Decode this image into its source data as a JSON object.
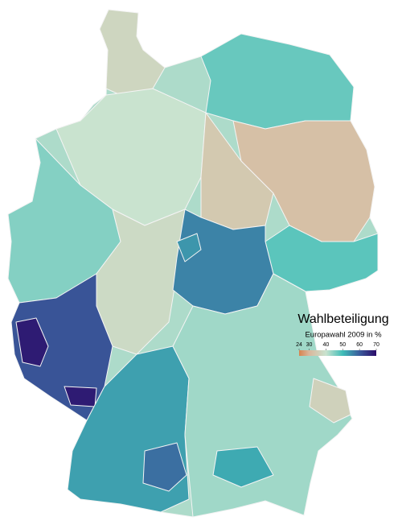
{
  "map": {
    "title": "Wahlbeteiligung",
    "subtitle": "Europawahl 2009 in %",
    "scale": {
      "min": 24,
      "max": 70,
      "stops": [
        {
          "value": 24,
          "color": "#d6844f"
        },
        {
          "value": 30,
          "color": "#d9b79c"
        },
        {
          "value": 40,
          "color": "#c9e3cf"
        },
        {
          "value": 50,
          "color": "#3fbdb7"
        },
        {
          "value": 60,
          "color": "#3a5c9c"
        },
        {
          "value": 70,
          "color": "#2b0b69"
        }
      ]
    },
    "legend_ticks": [
      24,
      30,
      40,
      50,
      60,
      70
    ],
    "regions": [
      {
        "value": 42
      },
      {
        "value": 37
      },
      {
        "value": 47
      },
      {
        "value": 40
      },
      {
        "value": 45
      },
      {
        "value": 32
      },
      {
        "value": 34
      },
      {
        "value": 48
      },
      {
        "value": 38
      },
      {
        "value": 56
      },
      {
        "value": 54
      },
      {
        "value": 61
      },
      {
        "value": 68
      },
      {
        "value": 53
      },
      {
        "value": 58
      },
      {
        "value": 43
      },
      {
        "value": 36
      },
      {
        "value": 52
      }
    ]
  }
}
